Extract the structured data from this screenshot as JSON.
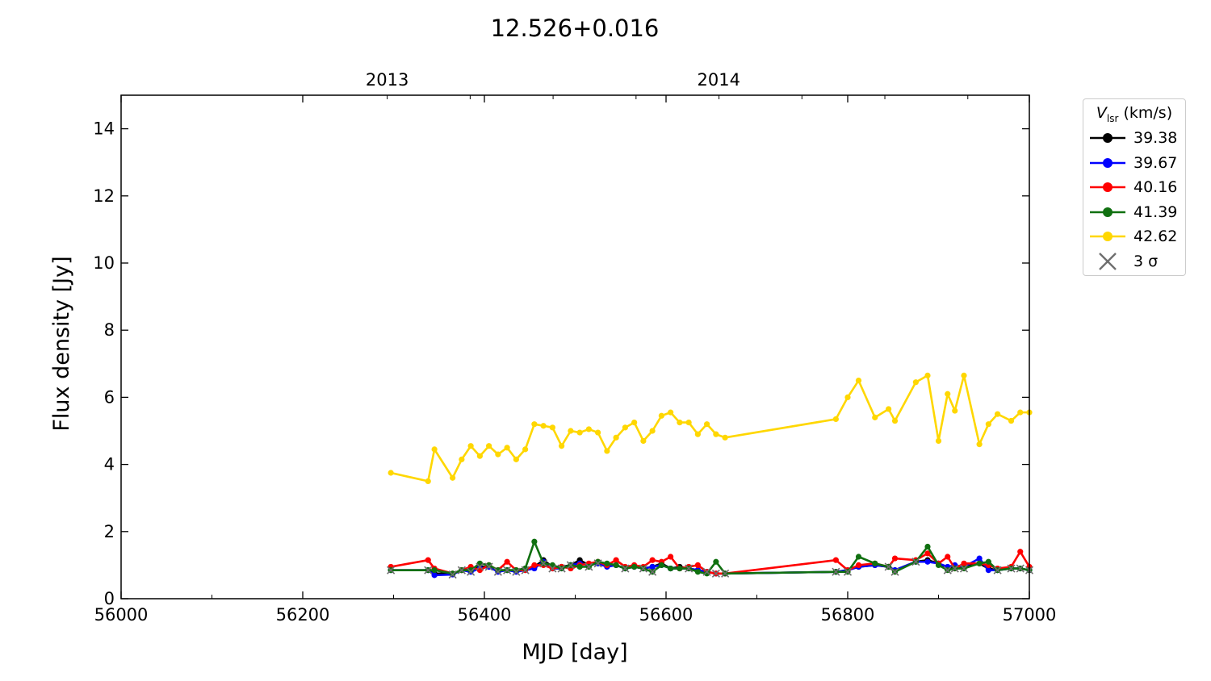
{
  "chart_data": {
    "type": "line",
    "title": "12.526+0.016",
    "xlabel": "MJD [day]",
    "ylabel": "Flux density [Jy]",
    "xlim": [
      56000,
      57000
    ],
    "ylim": [
      0,
      15
    ],
    "xticks": [
      56000,
      56200,
      56400,
      56600,
      56800,
      57000
    ],
    "xtick_labels": [
      "56000",
      "56200",
      "56400",
      "56600",
      "56800",
      "57000"
    ],
    "yticks": [
      0,
      2,
      4,
      6,
      8,
      10,
      12,
      14
    ],
    "ytick_labels": [
      "0",
      "2",
      "4",
      "6",
      "8",
      "10",
      "12",
      "14"
    ],
    "top_axis": {
      "ticks": [
        56293,
        56658
      ],
      "labels": [
        "2013",
        "2014"
      ]
    },
    "grid": false,
    "legend": {
      "placement": "outside-right",
      "title_symbol": "V",
      "title_sub": "lsr",
      "title_unit": "(km/s)",
      "upper_limit_label": "3 σ"
    },
    "series": [
      {
        "name": "39.38",
        "color": "#000000",
        "x": [
          56297,
          56338,
          56345,
          56365,
          56375,
          56385,
          56395,
          56405,
          56415,
          56425,
          56435,
          56445,
          56455,
          56465,
          56475,
          56485,
          56495,
          56505,
          56515,
          56525,
          56535,
          56545,
          56555,
          56565,
          56575,
          56585,
          56595,
          56605,
          56615,
          56625,
          56635,
          56645,
          56655,
          56665,
          56787,
          56800,
          56812,
          56830,
          56845,
          56852,
          56875,
          56888,
          56900,
          56910,
          56918,
          56928,
          56945,
          56955,
          56965,
          56980,
          56990,
          57000
        ],
        "y": [
          0.85,
          0.85,
          0.75,
          0.75,
          0.85,
          0.85,
          0.95,
          0.95,
          0.85,
          0.85,
          0.85,
          0.9,
          0.95,
          1.15,
          0.95,
          0.95,
          1.0,
          1.15,
          1.0,
          1.05,
          1.0,
          1.0,
          0.9,
          0.95,
          0.9,
          0.95,
          1.05,
          0.9,
          0.95,
          0.9,
          0.85,
          0.8,
          0.75,
          0.75,
          0.8,
          0.85,
          0.95,
          1.0,
          0.95,
          0.85,
          1.1,
          1.15,
          1.05,
          0.9,
          0.95,
          0.95,
          1.05,
          0.9,
          0.85,
          0.9,
          0.9,
          0.85
        ]
      },
      {
        "name": "39.67",
        "color": "#0000ff",
        "x": [
          56297,
          56338,
          56345,
          56365,
          56375,
          56385,
          56395,
          56405,
          56415,
          56425,
          56435,
          56445,
          56455,
          56465,
          56475,
          56485,
          56495,
          56505,
          56515,
          56525,
          56535,
          56545,
          56555,
          56565,
          56575,
          56585,
          56595,
          56605,
          56615,
          56625,
          56635,
          56645,
          56655,
          56665,
          56787,
          56800,
          56812,
          56830,
          56845,
          56852,
          56875,
          56888,
          56900,
          56910,
          56918,
          56928,
          56945,
          56955,
          56965,
          56980,
          56990,
          57000
        ],
        "y": [
          0.85,
          0.85,
          0.7,
          0.72,
          0.85,
          0.8,
          0.9,
          0.95,
          0.8,
          0.85,
          0.8,
          0.85,
          0.9,
          1.1,
          0.9,
          0.9,
          1.0,
          1.05,
          1.0,
          1.05,
          0.95,
          1.0,
          0.9,
          0.95,
          0.9,
          0.95,
          1.0,
          0.9,
          0.9,
          0.9,
          0.85,
          0.8,
          0.75,
          0.75,
          0.8,
          0.85,
          0.95,
          1.0,
          0.95,
          0.85,
          1.1,
          1.1,
          1.05,
          0.95,
          1.0,
          0.95,
          1.2,
          0.85,
          0.85,
          0.9,
          0.9,
          0.85
        ]
      },
      {
        "name": "40.16",
        "color": "#ff0000",
        "x": [
          56297,
          56338,
          56345,
          56365,
          56375,
          56385,
          56395,
          56405,
          56415,
          56425,
          56435,
          56445,
          56455,
          56465,
          56475,
          56485,
          56495,
          56505,
          56515,
          56525,
          56535,
          56545,
          56555,
          56565,
          56575,
          56585,
          56595,
          56605,
          56615,
          56625,
          56635,
          56645,
          56655,
          56665,
          56787,
          56800,
          56812,
          56830,
          56845,
          56852,
          56875,
          56888,
          56900,
          56910,
          56918,
          56928,
          56945,
          56955,
          56965,
          56980,
          56990,
          57000
        ],
        "y": [
          0.95,
          1.15,
          0.9,
          0.75,
          0.85,
          0.95,
          0.85,
          1.0,
          0.85,
          1.1,
          0.85,
          0.85,
          1.0,
          1.0,
          0.9,
          0.95,
          0.9,
          1.0,
          1.05,
          1.1,
          1.0,
          1.15,
          0.95,
          1.0,
          0.95,
          1.15,
          1.1,
          1.25,
          0.9,
          0.95,
          1.0,
          0.8,
          0.75,
          0.75,
          1.15,
          0.85,
          1.0,
          1.05,
          0.95,
          1.2,
          1.15,
          1.35,
          1.05,
          1.25,
          0.9,
          1.05,
          1.05,
          1.0,
          0.9,
          0.95,
          1.4,
          0.95
        ]
      },
      {
        "name": "41.39",
        "color": "#107010",
        "x": [
          56297,
          56338,
          56345,
          56365,
          56375,
          56385,
          56395,
          56405,
          56415,
          56425,
          56435,
          56445,
          56455,
          56465,
          56475,
          56485,
          56495,
          56505,
          56515,
          56525,
          56535,
          56545,
          56555,
          56565,
          56575,
          56585,
          56595,
          56605,
          56615,
          56625,
          56635,
          56645,
          56655,
          56665,
          56787,
          56800,
          56812,
          56830,
          56845,
          56852,
          56875,
          56888,
          56900,
          56910,
          56918,
          56928,
          56945,
          56955,
          56965,
          56980,
          56990,
          57000
        ],
        "y": [
          0.85,
          0.85,
          0.85,
          0.75,
          0.85,
          0.85,
          1.05,
          1.0,
          0.85,
          0.85,
          0.85,
          0.9,
          1.7,
          1.05,
          1.0,
          0.9,
          1.0,
          0.95,
          0.95,
          1.1,
          1.05,
          1.0,
          0.9,
          0.95,
          0.9,
          0.8,
          1.0,
          0.9,
          0.9,
          0.9,
          0.8,
          0.75,
          1.1,
          0.75,
          0.8,
          0.8,
          1.25,
          1.05,
          0.95,
          0.8,
          1.1,
          1.55,
          1.0,
          0.85,
          0.9,
          0.9,
          1.05,
          1.1,
          0.85,
          0.9,
          0.9,
          0.85
        ]
      },
      {
        "name": "42.62",
        "color": "#ffd700",
        "x": [
          56297,
          56338,
          56345,
          56365,
          56375,
          56385,
          56395,
          56405,
          56415,
          56425,
          56435,
          56445,
          56455,
          56465,
          56475,
          56485,
          56495,
          56505,
          56515,
          56525,
          56535,
          56545,
          56555,
          56565,
          56575,
          56585,
          56595,
          56605,
          56615,
          56625,
          56635,
          56645,
          56655,
          56665,
          56787,
          56800,
          56812,
          56830,
          56845,
          56852,
          56875,
          56888,
          56900,
          56910,
          56918,
          56928,
          56945,
          56955,
          56965,
          56980,
          56990,
          57000
        ],
        "y": [
          3.75,
          3.5,
          4.45,
          3.6,
          4.15,
          4.55,
          4.25,
          4.55,
          4.3,
          4.5,
          4.15,
          4.45,
          5.2,
          5.15,
          5.1,
          4.55,
          5.0,
          4.95,
          5.05,
          4.95,
          4.4,
          4.8,
          5.1,
          5.25,
          4.7,
          5.0,
          5.45,
          5.55,
          5.25,
          5.25,
          4.9,
          5.2,
          4.9,
          4.8,
          5.35,
          6.0,
          6.5,
          5.4,
          5.65,
          5.3,
          6.45,
          6.65,
          4.7,
          6.1,
          5.6,
          6.65,
          4.6,
          5.2,
          5.5,
          5.3,
          5.55,
          5.55
        ]
      }
    ],
    "upper_limits": {
      "label": "3 σ",
      "color": "#6e6e6e",
      "x": [
        56297,
        56338,
        56365,
        56375,
        56385,
        56395,
        56405,
        56415,
        56425,
        56435,
        56445,
        56465,
        56475,
        56485,
        56495,
        56515,
        56525,
        56555,
        56575,
        56585,
        56625,
        56645,
        56655,
        56665,
        56787,
        56800,
        56845,
        56852,
        56875,
        56910,
        56918,
        56928,
        56965,
        56980,
        56990,
        57000
      ],
      "y": [
        0.85,
        0.85,
        0.72,
        0.85,
        0.8,
        0.95,
        0.95,
        0.8,
        0.85,
        0.8,
        0.85,
        1.05,
        0.9,
        0.9,
        1.0,
        0.95,
        1.05,
        0.9,
        0.9,
        0.8,
        0.9,
        0.8,
        0.75,
        0.75,
        0.8,
        0.8,
        0.95,
        0.8,
        1.1,
        0.85,
        0.9,
        0.9,
        0.85,
        0.9,
        0.9,
        0.85
      ]
    }
  }
}
